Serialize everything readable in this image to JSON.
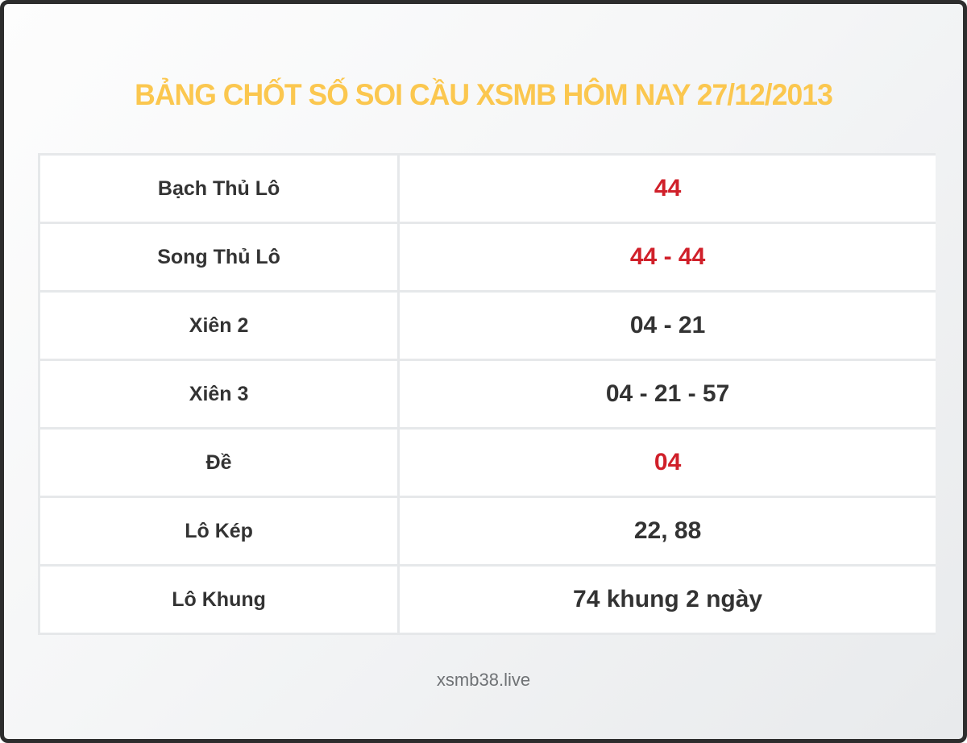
{
  "title": "BẢNG CHỐT SỐ SOI CẦU XSMB HÔM NAY 27/12/2013",
  "table": {
    "rows": [
      {
        "label": "Bạch Thủ Lô",
        "value": "44",
        "highlight": true
      },
      {
        "label": "Song Thủ Lô",
        "value": "44 - 44",
        "highlight": true
      },
      {
        "label": "Xiên 2",
        "value": "04 - 21",
        "highlight": false
      },
      {
        "label": "Xiên 3",
        "value": "04 - 21 - 57",
        "highlight": false
      },
      {
        "label": "Đề",
        "value": "04",
        "highlight": true
      },
      {
        "label": "Lô Kép",
        "value": "22, 88",
        "highlight": false
      },
      {
        "label": "Lô Khung",
        "value": "74 khung 2 ngày",
        "highlight": false
      }
    ]
  },
  "footer": {
    "site": "xsmb38.live"
  },
  "colors": {
    "title": "#fbc74f",
    "highlight": "#d0202a",
    "text": "#333333",
    "footer": "#6f7275"
  }
}
